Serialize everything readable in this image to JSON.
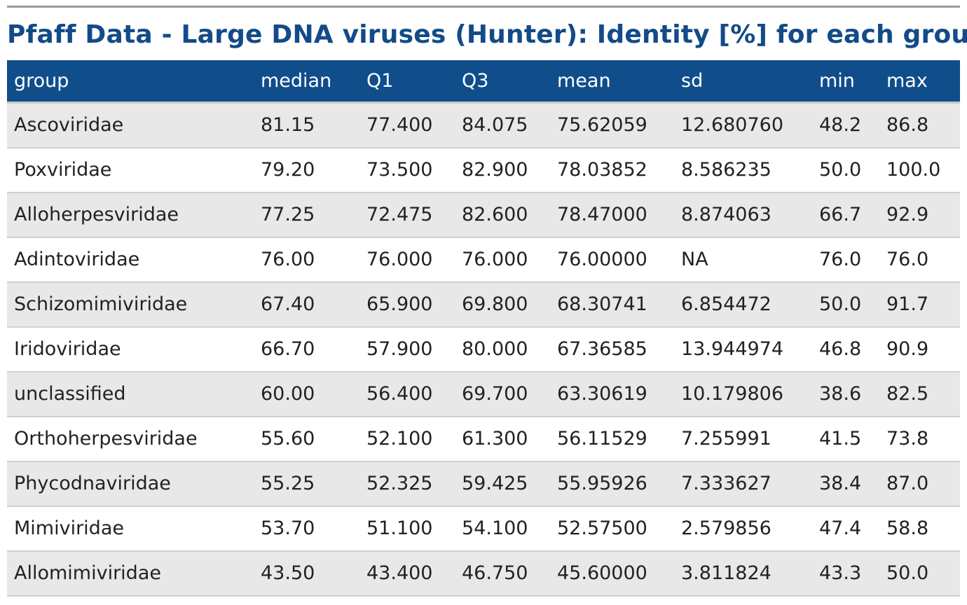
{
  "title": "Pfaff Data - Large DNA viruses (Hunter): Identity [%] for each group",
  "colors": {
    "header_bg": "#104e8b",
    "title": "#134b88",
    "row_alt": "#e8e8e8"
  },
  "columns": [
    "group",
    "median",
    "Q1",
    "Q3",
    "mean",
    "sd",
    "min",
    "max"
  ],
  "rows": [
    [
      "Ascoviridae",
      "81.15",
      "77.400",
      "84.075",
      "75.62059",
      "12.680760",
      "48.2",
      "86.8"
    ],
    [
      "Poxviridae",
      "79.20",
      "73.500",
      "82.900",
      "78.03852",
      "8.586235",
      "50.0",
      "100.0"
    ],
    [
      "Alloherpesviridae",
      "77.25",
      "72.475",
      "82.600",
      "78.47000",
      "8.874063",
      "66.7",
      "92.9"
    ],
    [
      "Adintoviridae",
      "76.00",
      "76.000",
      "76.000",
      "76.00000",
      "NA",
      "76.0",
      "76.0"
    ],
    [
      "Schizomimiviridae",
      "67.40",
      "65.900",
      "69.800",
      "68.30741",
      "6.854472",
      "50.0",
      "91.7"
    ],
    [
      "Iridoviridae",
      "66.70",
      "57.900",
      "80.000",
      "67.36585",
      "13.944974",
      "46.8",
      "90.9"
    ],
    [
      "unclassified",
      "60.00",
      "56.400",
      "69.700",
      "63.30619",
      "10.179806",
      "38.6",
      "82.5"
    ],
    [
      "Orthoherpesviridae",
      "55.60",
      "52.100",
      "61.300",
      "56.11529",
      "7.255991",
      "41.5",
      "73.8"
    ],
    [
      "Phycodnaviridae",
      "55.25",
      "52.325",
      "59.425",
      "55.95926",
      "7.333627",
      "38.4",
      "87.0"
    ],
    [
      "Mimiviridae",
      "53.70",
      "51.100",
      "54.100",
      "52.57500",
      "2.579856",
      "47.4",
      "58.8"
    ],
    [
      "Allomimiviridae",
      "43.50",
      "43.400",
      "46.750",
      "45.60000",
      "3.811824",
      "43.3",
      "50.0"
    ]
  ]
}
